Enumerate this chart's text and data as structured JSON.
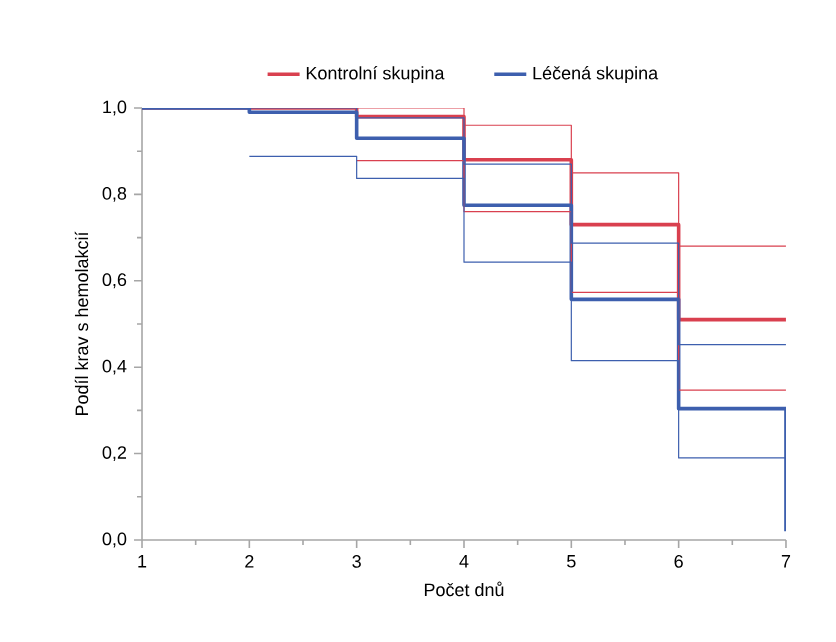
{
  "chart_data": {
    "type": "step",
    "xlabel": "Počet dnů",
    "ylabel": "Podíl krav s hemolakcií",
    "x": [
      1,
      2,
      3,
      4,
      5,
      6,
      7
    ],
    "series": [
      {
        "name": "Kontrolní skupina",
        "color": "#d9404f",
        "values": [
          1.0,
          1.0,
          0.98,
          0.88,
          0.73,
          0.51,
          0.51
        ]
      },
      {
        "name": "Léčená skupina",
        "color": "#3d5fae",
        "values": [
          1.0,
          0.99,
          0.93,
          0.775,
          0.557,
          0.304,
          0.02
        ]
      },
      {
        "color": "#d9404f",
        "values": [
          null,
          null,
          1.0,
          0.96,
          0.85,
          0.68,
          0.68
        ]
      },
      {
        "color": "#d9404f",
        "values": [
          null,
          null,
          0.878,
          0.76,
          0.573,
          0.347,
          0.347
        ]
      },
      {
        "color": "#3d5fae",
        "values": [
          null,
          1.0,
          0.977,
          0.87,
          0.687,
          0.452,
          0.452
        ]
      },
      {
        "color": "#3d5fae",
        "values": [
          null,
          0.888,
          0.837,
          0.643,
          0.415,
          0.19,
          0.19
        ]
      }
    ],
    "xlim": [
      1,
      7
    ],
    "xticks": [
      1,
      2,
      3,
      4,
      5,
      6,
      7
    ],
    "ylim": [
      0,
      1
    ],
    "yticks": [
      {
        "value": 0,
        "label": "0,0"
      },
      {
        "value": 0.2,
        "label": "0,2"
      },
      {
        "value": 0.4,
        "label": "0,4"
      },
      {
        "value": 0.6,
        "label": "0,6"
      },
      {
        "value": 0.8,
        "label": "0,8"
      },
      {
        "value": 1.0,
        "label": "1,0"
      }
    ],
    "legend": "top",
    "grid": false,
    "marker": "none",
    "line_style": "solid"
  }
}
